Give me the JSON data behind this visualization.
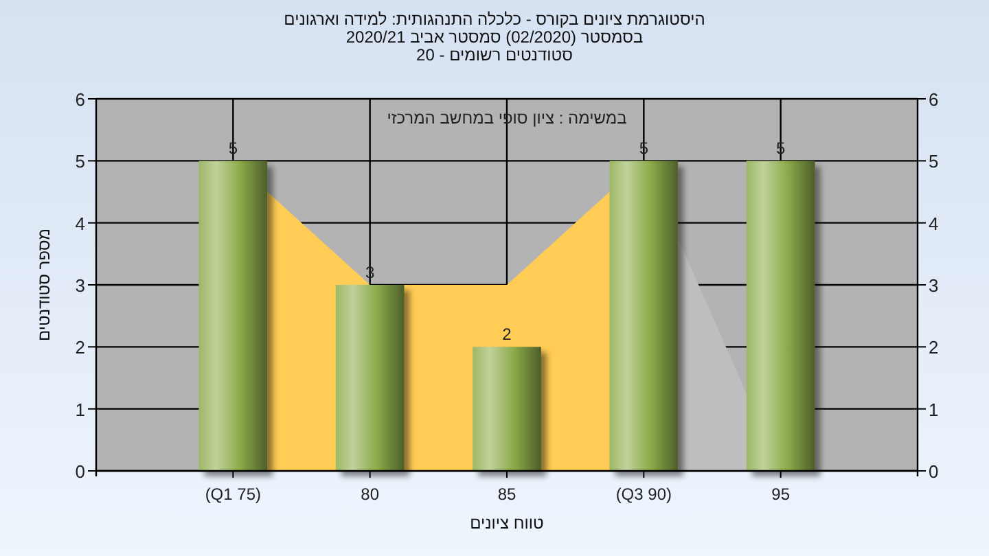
{
  "chart_data": {
    "type": "bar",
    "title": "היסטוגרמת ציונים בקורס - כלכלה התנהגותית: למידה וארגונים",
    "subtitle": "בסמסטר (02/2020) סמסטר אביב 2020/21\nסטודנטים רשומים - 20",
    "xlabel": "טווח ציונים",
    "ylabel": "מספר סטודנטים",
    "annotations": [
      "במשימה : ציון סופי במחשב המרכזי"
    ],
    "categories": [
      "(Q1 75)",
      "80",
      "85",
      "(Q3 90)",
      "95"
    ],
    "series": [
      {
        "type": "area",
        "color": "#ffcc55",
        "values": [
          5,
          3,
          3,
          5,
          null
        ]
      },
      {
        "type": "area",
        "color": "#bebebe",
        "values": [
          null,
          null,
          null,
          5,
          0
        ]
      },
      {
        "color": "#8cab4a",
        "values": [
          5,
          3,
          2,
          5,
          5
        ],
        "value_labels": [
          "5",
          "3",
          "2",
          "5",
          "5"
        ]
      }
    ],
    "ylim": [
      0,
      6
    ],
    "yticks": [
      0,
      1,
      2,
      3,
      4,
      5,
      6
    ],
    "y2lim": [
      0,
      6
    ],
    "y2ticks": [
      0,
      1,
      2,
      3,
      4,
      5,
      6
    ],
    "grid": true
  }
}
